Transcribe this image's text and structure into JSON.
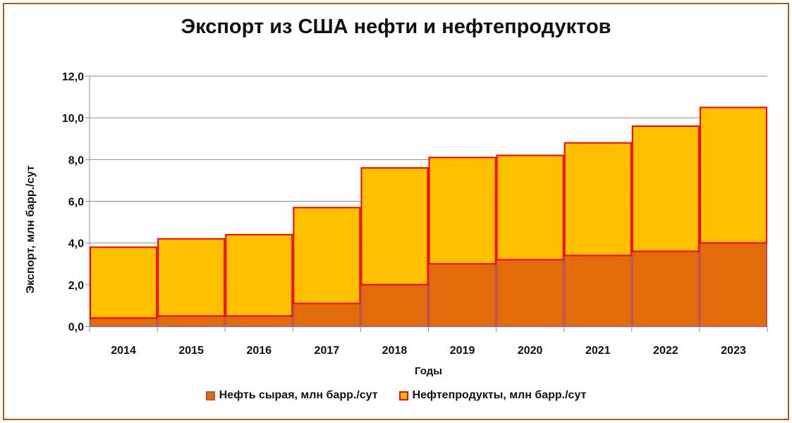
{
  "chart_data": {
    "type": "bar",
    "stacked": true,
    "title": "Экспорт из США нефти и нефтепродуктов",
    "xlabel": "Годы",
    "ylabel": "Экспорт, млн барр./сут",
    "ylim": [
      0,
      12
    ],
    "yticks": [
      "0,0",
      "2,0",
      "4,0",
      "6,0",
      "8,0",
      "10,0",
      "12,0"
    ],
    "grid": true,
    "legend_position": "bottom",
    "categories": [
      "2014",
      "2015",
      "2016",
      "2017",
      "2018",
      "2019",
      "2020",
      "2021",
      "2022",
      "2023"
    ],
    "series": [
      {
        "name": "Нефть сырая, млн барр./сут",
        "color": "#e36c0a",
        "edge": "#c0504d",
        "values": [
          0.4,
          0.5,
          0.5,
          1.1,
          2.0,
          3.0,
          3.2,
          3.4,
          3.6,
          4.0
        ]
      },
      {
        "name": "Нефтепродукты, млн барр./сут",
        "color": "#ffc000",
        "edge": "#ff0000",
        "values": [
          3.4,
          3.7,
          3.9,
          4.6,
          5.6,
          5.1,
          5.0,
          5.4,
          6.0,
          6.5
        ]
      }
    ]
  }
}
